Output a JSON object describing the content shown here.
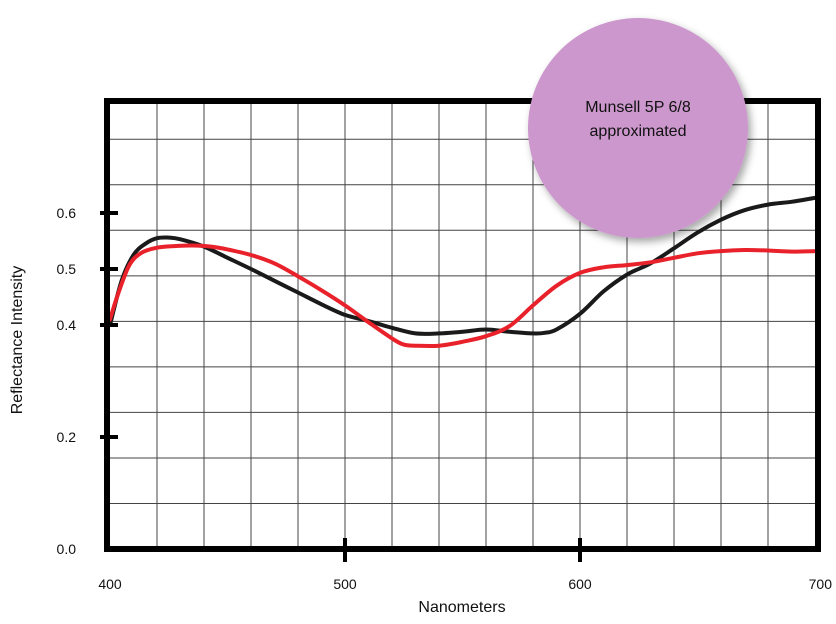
{
  "chart_data": {
    "type": "line",
    "xlabel": "Nanometers",
    "ylabel": "Reflectance Intensity",
    "xlim": [
      400,
      700
    ],
    "ylim": [
      0.0,
      0.8
    ],
    "x_ticks": [
      {
        "value": 400,
        "label": "400"
      },
      {
        "value": 500,
        "label": "500"
      },
      {
        "value": 600,
        "label": "600"
      },
      {
        "value": 700,
        "label": "700"
      }
    ],
    "y_ticks": [
      {
        "value": 0.0,
        "label": "0.0"
      },
      {
        "value": 0.2,
        "label": "0.2"
      },
      {
        "value": 0.4,
        "label": "0.4"
      },
      {
        "value": 0.5,
        "label": "0.5"
      },
      {
        "value": 0.6,
        "label": "0.6"
      }
    ],
    "grid": true,
    "grid_x_step": 20,
    "grid_y_step": 0.0813,
    "series": [
      {
        "color": "#1a1a1a",
        "x": [
          400,
          405,
          410,
          415,
          420,
          425,
          430,
          440,
          450,
          460,
          470,
          480,
          490,
          500,
          510,
          520,
          530,
          540,
          550,
          560,
          570,
          580,
          585,
          590,
          600,
          610,
          620,
          630,
          640,
          650,
          660,
          670,
          680,
          690,
          700
        ],
        "y": [
          0.4,
          0.48,
          0.525,
          0.545,
          0.555,
          0.556,
          0.553,
          0.54,
          0.52,
          0.5,
          0.479,
          0.458,
          0.437,
          0.418,
          0.407,
          0.395,
          0.385,
          0.385,
          0.388,
          0.392,
          0.388,
          0.385,
          0.386,
          0.392,
          0.42,
          0.46,
          0.49,
          0.51,
          0.537,
          0.565,
          0.588,
          0.605,
          0.615,
          0.62,
          0.627
        ]
      },
      {
        "color": "#e8212a",
        "x": [
          400,
          403,
          408,
          413,
          420,
          428,
          435,
          443,
          450,
          460,
          470,
          480,
          490,
          500,
          510,
          520,
          525,
          530,
          540,
          550,
          560,
          570,
          580,
          590,
          600,
          610,
          620,
          630,
          640,
          650,
          660,
          670,
          680,
          690,
          700
        ],
        "y": [
          0.41,
          0.45,
          0.505,
          0.528,
          0.538,
          0.541,
          0.542,
          0.54,
          0.535,
          0.525,
          0.51,
          0.487,
          0.462,
          0.435,
          0.405,
          0.376,
          0.365,
          0.363,
          0.363,
          0.37,
          0.38,
          0.398,
          0.435,
          0.47,
          0.493,
          0.503,
          0.507,
          0.512,
          0.52,
          0.528,
          0.532,
          0.534,
          0.533,
          0.531,
          0.532
        ]
      }
    ]
  },
  "callout": {
    "line1": "Munsell 5P 6/8",
    "line2": "approximated",
    "fill": "#cc97cc"
  }
}
